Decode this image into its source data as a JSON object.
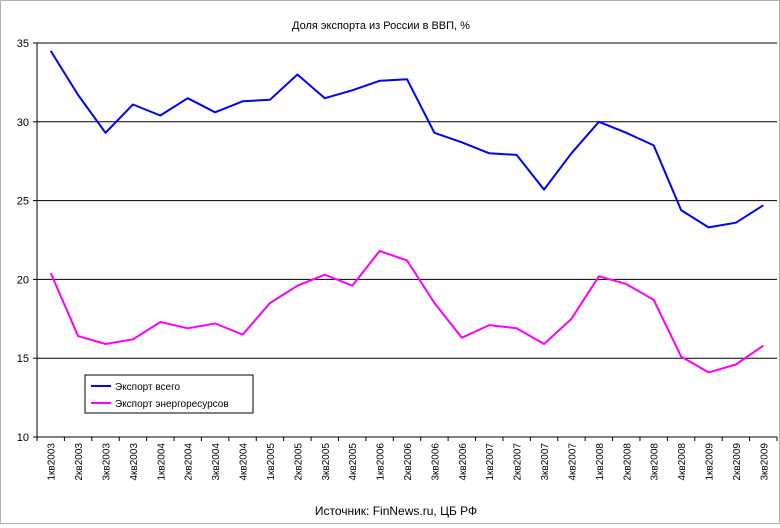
{
  "chart_data": {
    "type": "line",
    "title": "Доля экспорта из России в ВВП, %",
    "source": "Источник: FinNews.ru, ЦБ РФ",
    "categories": [
      "1кв2003",
      "2кв2003",
      "3кв2003",
      "4кв2003",
      "1кв2004",
      "2кв2004",
      "3кв2004",
      "4кв2004",
      "1кв2005",
      "2кв2005",
      "3кв2005",
      "4кв2005",
      "1кв2006",
      "2кв2006",
      "3кв2006",
      "4кв2006",
      "1кв2007",
      "2кв2007",
      "3кв2007",
      "4кв2007",
      "1кв2008",
      "2кв2008",
      "3кв2008",
      "4кв2008",
      "1кв2009",
      "2кв2009",
      "3кв2009"
    ],
    "ylim": [
      10,
      35
    ],
    "yticks": [
      10,
      15,
      20,
      25,
      30,
      35
    ],
    "grid": true,
    "legend_position": "bottom-left",
    "series": [
      {
        "name": "Экспорт всего",
        "color": "#0000ff",
        "values": [
          34.5,
          31.7,
          29.3,
          31.1,
          30.4,
          31.5,
          30.6,
          31.3,
          31.4,
          33.0,
          31.5,
          32.0,
          32.6,
          32.7,
          29.3,
          28.7,
          28.0,
          27.9,
          25.7,
          28.0,
          30.0,
          29.3,
          28.5,
          24.4,
          23.3,
          23.6,
          24.7
        ]
      },
      {
        "name": "Экспорт энергоресурсов",
        "color": "#ff00ff",
        "values": [
          20.4,
          16.4,
          15.9,
          16.2,
          17.3,
          16.9,
          17.2,
          16.5,
          18.5,
          19.6,
          20.3,
          19.6,
          21.8,
          21.2,
          18.5,
          16.3,
          17.1,
          16.9,
          15.9,
          17.5,
          20.2,
          19.7,
          18.7,
          15.1,
          14.1,
          14.6,
          15.8
        ]
      }
    ]
  }
}
